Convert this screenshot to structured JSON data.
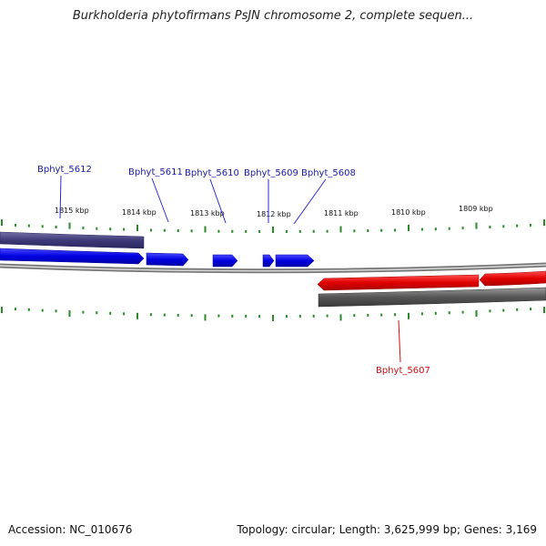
{
  "title": "Burkholderia phytofirmans PsJN chromosome 2, complete sequen...",
  "footer": {
    "accession": "Accession: NC_010676",
    "summary": "Topology: circular; Length: 3,625,999 bp; Genes: 3,169"
  },
  "colors": {
    "forward_gene": "#0a0adc",
    "reverse_gene": "#e01010",
    "forward_label": "#1a1aa0",
    "reverse_label": "#cc1010",
    "forward_band": "#4a4680",
    "reverse_band": "#5a5a5a",
    "backbone": "#8a8a8a",
    "ticks": "#2a8a2a"
  },
  "tick_labels": [
    "1815 kbp",
    "1814 kbp",
    "1813 kbp",
    "1812 kbp",
    "1811 kbp",
    "1810 kbp",
    "1809 kbp"
  ],
  "genes_forward": [
    "Bphyt_5612",
    "Bphyt_5611",
    "Bphyt_5610",
    "Bphyt_5609",
    "Bphyt_5608"
  ],
  "genes_reverse": [
    "Bphyt_5607"
  ]
}
